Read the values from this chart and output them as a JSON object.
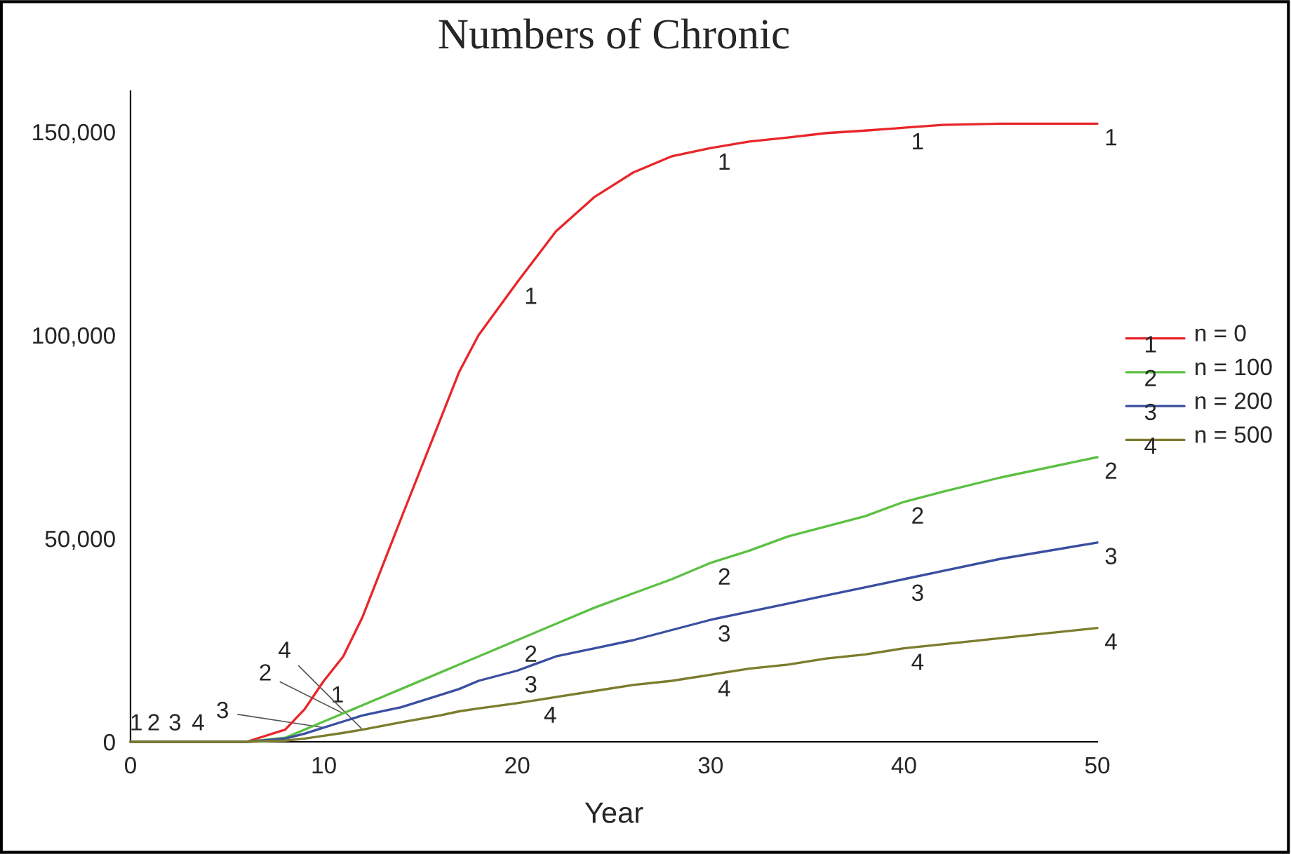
{
  "chart_data": {
    "type": "line",
    "title": "Numbers of Chronic",
    "xlabel": "Year",
    "x": [
      0,
      6,
      8,
      9,
      10,
      11,
      12,
      14,
      16,
      17,
      18,
      20,
      22,
      24,
      26,
      28,
      30,
      32,
      34,
      36,
      38,
      40,
      42,
      45,
      50
    ],
    "series": [
      {
        "name": "n = 0",
        "color": "#e8262a",
        "values": [
          0,
          0,
          3000,
          8000,
          15000,
          21000,
          30700,
          55000,
          79000,
          91000,
          100000,
          113000,
          125500,
          134000,
          140000,
          144000,
          146000,
          147600,
          148600,
          149700,
          150300,
          151000,
          151700,
          152000,
          152000
        ]
      },
      {
        "name": "n = 100",
        "color": "#5cc043",
        "values": [
          0,
          0,
          1000,
          3000,
          5000,
          7000,
          9000,
          13000,
          17000,
          19000,
          21000,
          25000,
          29000,
          33000,
          36500,
          40000,
          44000,
          47000,
          50500,
          53000,
          55500,
          59000,
          61500,
          65000,
          70000
        ]
      },
      {
        "name": "n = 200",
        "color": "#3a4fa0",
        "values": [
          0,
          0,
          800,
          2000,
          3500,
          5000,
          6500,
          8500,
          11500,
          13000,
          15000,
          17500,
          21000,
          23000,
          25000,
          27500,
          30000,
          32000,
          34000,
          36000,
          38000,
          40000,
          42000,
          45000,
          49000
        ]
      },
      {
        "name": "n = 500",
        "color": "#7c7c2e",
        "values": [
          0,
          0,
          300,
          800,
          1500,
          2200,
          3000,
          4800,
          6500,
          7500,
          8200,
          9500,
          11000,
          12500,
          14000,
          15000,
          16500,
          18000,
          19000,
          20500,
          21500,
          23000,
          24000,
          25500,
          28000
        ]
      }
    ],
    "xlim": [
      0,
      50
    ],
    "xticks": [
      0,
      10,
      20,
      30,
      40,
      50
    ],
    "ylim": [
      0,
      160000
    ],
    "yticks": [
      0,
      {
        "value": 50000,
        "label": "50,000"
      },
      {
        "value": 100000,
        "label": "100,000"
      },
      {
        "value": 150000,
        "label": "150,000"
      }
    ],
    "grid": false,
    "legend": "right",
    "annotations": [
      {
        "text": "1",
        "x": 0.3,
        "y": 0
      },
      {
        "text": "2",
        "x": 1.2,
        "y": 0
      },
      {
        "text": "3",
        "x": 2.3,
        "y": 0
      },
      {
        "text": "4",
        "x": 3.5,
        "y": 0
      },
      {
        "text": "1",
        "x": 10,
        "y": 15000
      },
      {
        "text": "1",
        "x": 20,
        "y": 113000
      },
      {
        "text": "1",
        "x": 30,
        "y": 146000
      },
      {
        "text": "1",
        "x": 40,
        "y": 151000
      },
      {
        "text": "1",
        "x": 50,
        "y": 152000
      },
      {
        "text": "2",
        "x": 11,
        "y": 7000
      },
      {
        "text": "2",
        "x": 20,
        "y": 25000
      },
      {
        "text": "2",
        "x": 30,
        "y": 44000
      },
      {
        "text": "2",
        "x": 40,
        "y": 59000
      },
      {
        "text": "2",
        "x": 50,
        "y": 70000
      },
      {
        "text": "3",
        "x": 10,
        "y": 3500
      },
      {
        "text": "3",
        "x": 20,
        "y": 17500
      },
      {
        "text": "3",
        "x": 30,
        "y": 30000
      },
      {
        "text": "3",
        "x": 40,
        "y": 40000
      },
      {
        "text": "3",
        "x": 50,
        "y": 49000
      },
      {
        "text": "4",
        "x": 12,
        "y": 3000
      },
      {
        "text": "4",
        "x": 21,
        "y": 10000
      },
      {
        "text": "4",
        "x": 30,
        "y": 16500
      },
      {
        "text": "4",
        "x": 40,
        "y": 23000
      },
      {
        "text": "4",
        "x": 50,
        "y": 28000
      }
    ]
  }
}
